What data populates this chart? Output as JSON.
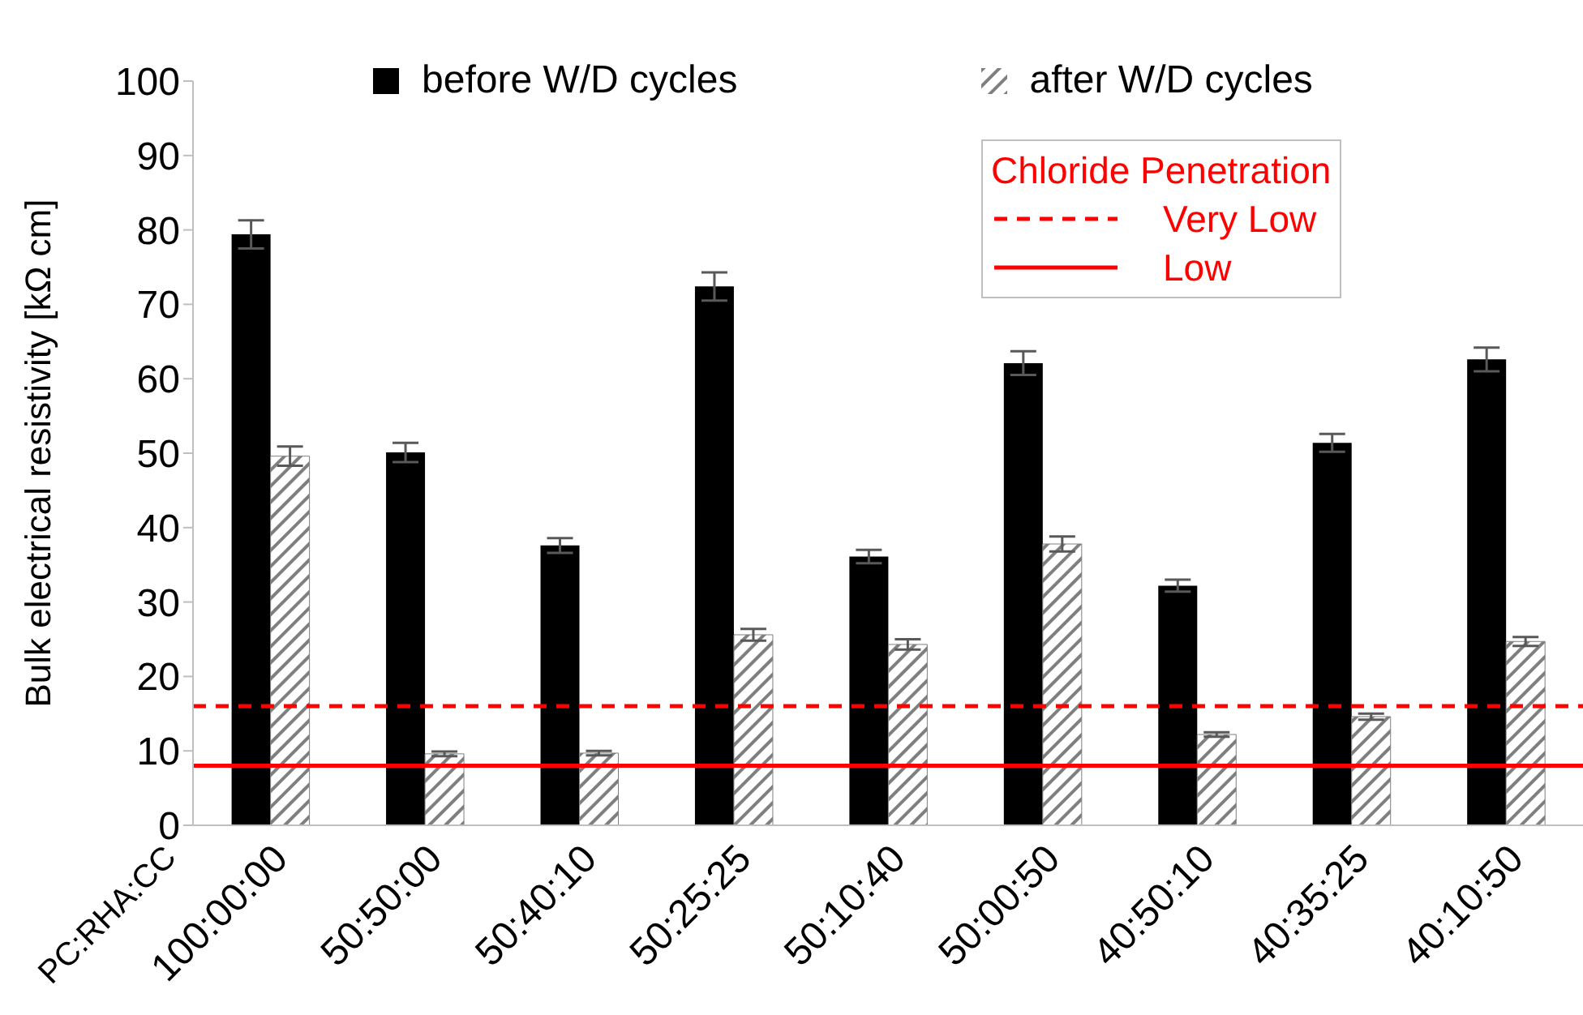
{
  "chart_data": {
    "type": "bar",
    "xlabel": "PC:RHA:CC",
    "ylabel": "Bulk electrical resistivity [kΩ cm]",
    "categories": [
      "100:00:00",
      "50:50:00",
      "50:40:10",
      "50:25:25",
      "50:10:40",
      "50:00:50",
      "40:50:10",
      "40:35:25",
      "40:10:50"
    ],
    "series": [
      {
        "name": "before W/D cycles",
        "color": "#000000",
        "values": [
          79.4,
          50.1,
          37.6,
          72.4,
          36.1,
          62.1,
          32.2,
          51.4,
          62.6
        ],
        "errors": [
          1.9,
          1.3,
          1.0,
          1.9,
          0.9,
          1.6,
          0.8,
          1.2,
          1.6
        ]
      },
      {
        "name": "after W/D cycles",
        "color": "#7f7f7f",
        "values": [
          49.6,
          9.6,
          9.7,
          25.6,
          24.3,
          37.8,
          12.2,
          14.6,
          24.7
        ],
        "errors": [
          1.3,
          0.3,
          0.3,
          0.8,
          0.7,
          1.0,
          0.3,
          0.4,
          0.6
        ]
      }
    ],
    "ylim": [
      0,
      100
    ],
    "yticks": [
      0,
      10,
      20,
      30,
      40,
      50,
      60,
      70,
      80,
      90,
      100
    ],
    "legend": "top",
    "legend_title": "Chloride Penetration",
    "ref_lines": [
      {
        "axis": "y",
        "value": 16,
        "label": "Very Low",
        "color": "#ff0000",
        "line_style": "dashed"
      },
      {
        "axis": "y",
        "value": 8,
        "label": "Low",
        "color": "#ff0000",
        "line_style": "solid"
      }
    ]
  }
}
